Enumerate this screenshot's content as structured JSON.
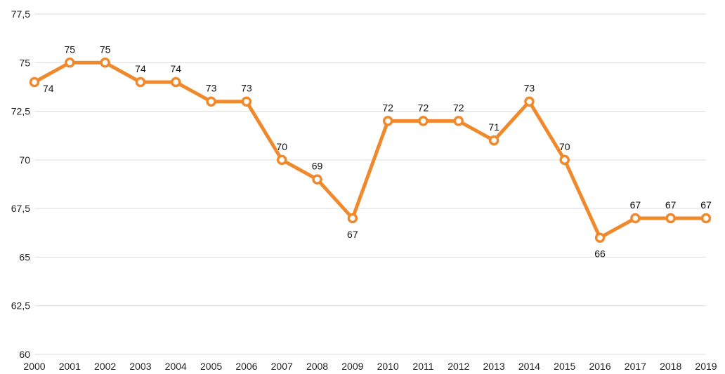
{
  "chart_data": {
    "type": "line",
    "title": "",
    "xlabel": "",
    "ylabel": "",
    "x": [
      "2000",
      "2001",
      "2002",
      "2003",
      "2004",
      "2005",
      "2006",
      "2007",
      "2008",
      "2009",
      "2010",
      "2011",
      "2012",
      "2013",
      "2014",
      "2015",
      "2016",
      "2017",
      "2018",
      "2019"
    ],
    "series": [
      {
        "values": [
          74,
          75,
          75,
          74,
          74,
          73,
          73,
          70,
          69,
          67,
          72,
          72,
          72,
          71,
          73,
          70,
          66,
          67,
          67,
          67
        ],
        "data_labels": [
          "74",
          "75",
          "75",
          "74",
          "74",
          "73",
          "73",
          "70",
          "69",
          "67",
          "72",
          "72",
          "72",
          "71",
          "73",
          "70",
          "66",
          "67",
          "67",
          "67"
        ],
        "color": "#F0892C"
      }
    ],
    "ylim": [
      60,
      77.5
    ],
    "yticks": [
      60,
      62.5,
      65,
      67.5,
      70,
      72.5,
      75,
      77.5
    ],
    "ytick_labels": [
      "60",
      "62,5",
      "65",
      "67,5",
      "70",
      "72,5",
      "75",
      "77,5"
    ],
    "grid": "horizontal",
    "legend": "none"
  }
}
